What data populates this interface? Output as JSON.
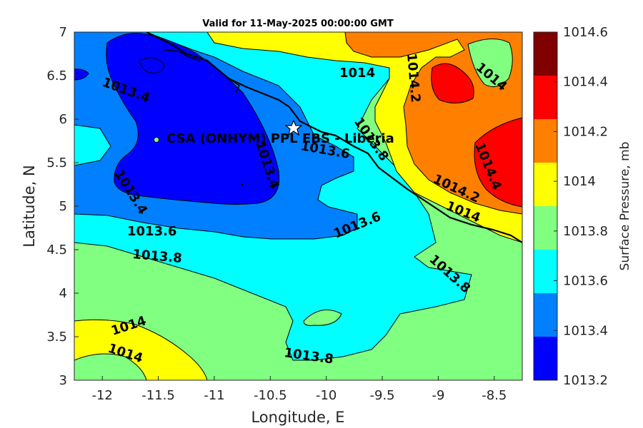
{
  "title": "Valid for 11-May-2025 00:00:00 GMT",
  "xlabel": "Longitude, E",
  "ylabel": "Latitude, N",
  "x_ticks": [
    "-12",
    "-11.5",
    "-11",
    "-10.5",
    "-10",
    "-9.5",
    "-9",
    "-8.5"
  ],
  "y_ticks": [
    "7",
    "6.5",
    "6",
    "5.5",
    "5",
    "4.5",
    "4",
    "3.5",
    "3"
  ],
  "colorbar": {
    "title": "Surface Pressure, mb",
    "labels": [
      "1014.6",
      "1014.4",
      "1014.2",
      "1014",
      "1013.8",
      "1013.6",
      "1013.4",
      "1013.2"
    ],
    "colors": [
      "#800000",
      "#ff0000",
      "#ff8000",
      "#ffff00",
      "#80ff80",
      "#00ffff",
      "#0080ff",
      "#0000ff"
    ]
  },
  "station": {
    "name": "CSA (ONHYM) PPL EBS - Liberia",
    "lon": -10.3,
    "lat": 5.93
  },
  "contour_labels": {
    "l1": "1013.4",
    "l2": "1013.4",
    "l3": "1013.4",
    "l4": "1013.6",
    "l5": "1013.6",
    "l6": "1013.6",
    "l7": "1013.8",
    "l8": "1013.8",
    "l9": "1013.8",
    "l10": "1013.8",
    "l11": "1014",
    "l12": "1014",
    "l13": "1014",
    "l14": "1014",
    "l15": "1014",
    "l16": "1014.2",
    "l17": "1014.2",
    "l18": "1014.4"
  },
  "chart_data": {
    "type": "heatmap",
    "title": "Valid for 11-May-2025 00:00:00 GMT",
    "xlabel": "Longitude, E",
    "ylabel": "Latitude, N",
    "xlim": [
      -12.25,
      -8.25
    ],
    "ylim": [
      3,
      7
    ],
    "levels": [
      1013.2,
      1013.4,
      1013.6,
      1013.8,
      1014,
      1014.2,
      1014.4,
      1014.6
    ],
    "colorbar_label": "Surface Pressure, mb",
    "grid": false
  }
}
